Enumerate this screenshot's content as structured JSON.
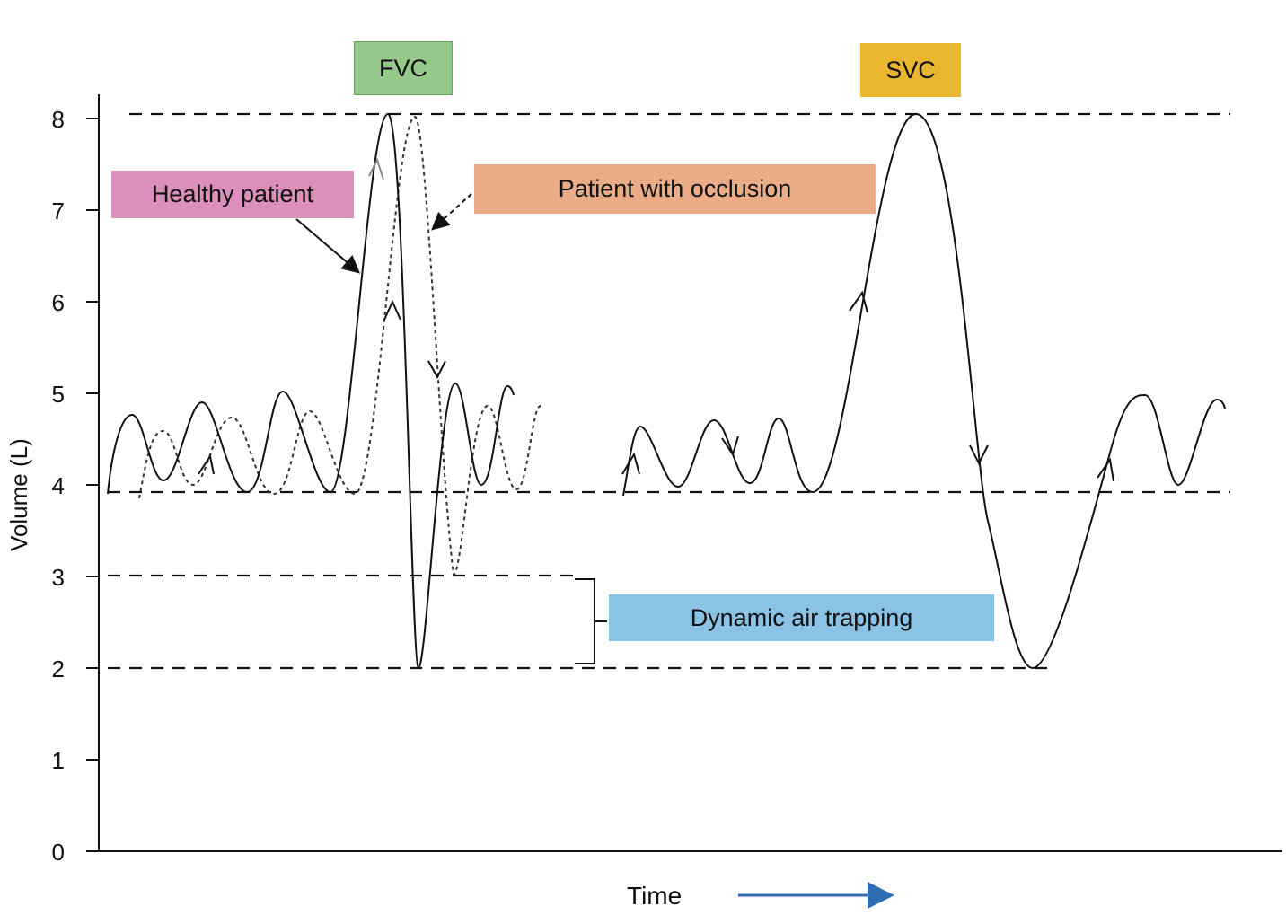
{
  "figure": {
    "y_axis_label": "Volume (L)",
    "x_axis_label": "Time",
    "y_ticks": [
      "0",
      "1",
      "2",
      "3",
      "4",
      "5",
      "6",
      "7",
      "8"
    ],
    "labels": {
      "fvc": "FVC",
      "svc": "SVC",
      "healthy": "Healthy patient",
      "occlusion": "Patient with occlusion",
      "air_trapping": "Dynamic air trapping"
    },
    "colors": {
      "fvc": "#95c98b",
      "svc": "#ebb62f",
      "healthy": "#dc8fbb",
      "occlusion": "#e9ac87",
      "air_trapping": "#8bc3e6",
      "time_arrow": "#2f6db5"
    }
  }
}
